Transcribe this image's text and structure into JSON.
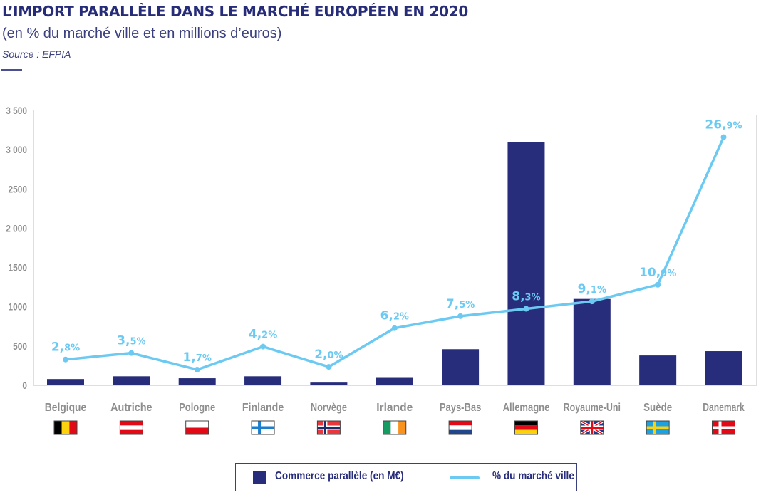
{
  "header": {
    "title": "L’IMPORT PARALLÈLE DANS LE MARCHÉ EUROPÉEN EN 2020",
    "subtitle": "(en % du marché ville et en millions d’euros)",
    "source": "Source : EFPIA"
  },
  "colors": {
    "bar": "#272d7b",
    "line": "#6ccaf2",
    "axis": "#d4d4d4",
    "tick_text": "#8e8e8e",
    "title": "#272c78"
  },
  "chart_data": {
    "type": "bar",
    "title": "L’IMPORT PARALLÈLE DANS LE MARCHÉ EUROPÉEN EN 2020",
    "subtitle": "(en % du marché ville et en millions d’euros)",
    "xlabel": "",
    "ylabel": "",
    "ylim": [
      0,
      3500
    ],
    "yticks": [
      0,
      500,
      1000,
      1500,
      2000,
      2500,
      3000,
      3500
    ],
    "ytick_labels": [
      "0",
      "500",
      "1000",
      "1500",
      "2 000",
      "2500",
      "3 000",
      "3 500"
    ],
    "y2lim": [
      0,
      29.8
    ],
    "grid": false,
    "legend_position": "bottom-center",
    "categories": [
      "Belgique",
      "Autriche",
      "Pologne",
      "Finlande",
      "Norvège",
      "Irlande",
      "Pays-Bas",
      "Allemagne",
      "Royaume-Uni",
      "Suède",
      "Danemark"
    ],
    "flags": [
      "belgium",
      "austria",
      "poland",
      "finland",
      "norway",
      "ireland",
      "netherlands",
      "germany",
      "united-kingdom",
      "sweden",
      "denmark"
    ],
    "series": [
      {
        "name": "Commerce parallèle (en M€)",
        "type": "bar",
        "values": [
          80,
          115,
          90,
          115,
          35,
          95,
          460,
          3100,
          1100,
          380,
          435
        ]
      },
      {
        "name": "% du marché ville",
        "type": "line",
        "values": [
          2.8,
          3.5,
          1.7,
          4.2,
          2.0,
          6.2,
          7.5,
          8.3,
          9.1,
          10.9,
          26.9
        ],
        "labels": [
          "2,8%",
          "3,5%",
          "1,7%",
          "4,2%",
          "2,0%",
          "6,2%",
          "7,5%",
          "8,3%",
          "9,1%",
          "10,9%",
          "26,9%"
        ]
      }
    ]
  },
  "legend": {
    "bar_label": "Commerce parallèle (en M€)",
    "line_label": "% du marché ville"
  }
}
